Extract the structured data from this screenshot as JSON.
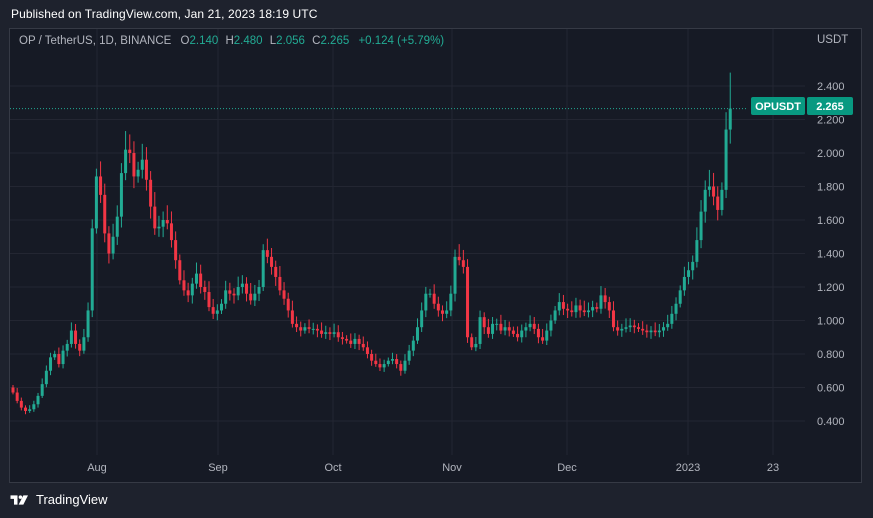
{
  "header": {
    "published": "Published on TradingView.com, Jan 21, 2023 18:19 UTC"
  },
  "legend": {
    "symbol": "OP / TetherUS, 1D, BINANCE",
    "o_label": "O",
    "o": "2.140",
    "h_label": "H",
    "h": "2.480",
    "l_label": "L",
    "l": "2.056",
    "c_label": "C",
    "c": "2.265",
    "change": "+0.124 (+5.79%)"
  },
  "price_axis": {
    "unit": "USDT",
    "ticks": [
      "2.400",
      "2.200",
      "2.000",
      "1.800",
      "1.600",
      "1.400",
      "1.200",
      "1.000",
      "0.800",
      "0.600",
      "0.400"
    ]
  },
  "time_axis": {
    "ticks": [
      "Aug",
      "Sep",
      "Oct",
      "Nov",
      "Dec",
      "2023",
      "23"
    ]
  },
  "last_price": {
    "symbol": "OPUSDT",
    "value": "2.265"
  },
  "footer": {
    "brand": "TradingView"
  },
  "colors": {
    "up": "#22ab94",
    "down": "#f23645",
    "background": "#161a25",
    "grid": "#232632",
    "label_bg": "#089981"
  },
  "chart_data": {
    "type": "candlestick",
    "symbol": "OP / TetherUS",
    "interval": "1D",
    "exchange": "BINANCE",
    "x_ticks": [
      "Aug",
      "Sep",
      "Oct",
      "Nov",
      "Dec",
      "2023",
      "23"
    ],
    "y_unit": "USDT",
    "ylim": [
      0.2,
      2.62
    ],
    "grid": true,
    "closes": [
      0.57,
      0.52,
      0.48,
      0.46,
      0.47,
      0.5,
      0.55,
      0.62,
      0.7,
      0.78,
      0.8,
      0.74,
      0.82,
      0.86,
      0.94,
      0.86,
      0.82,
      0.9,
      1.06,
      1.55,
      1.86,
      1.75,
      1.52,
      1.4,
      1.5,
      1.62,
      1.88,
      2.02,
      2.0,
      1.86,
      1.9,
      1.96,
      1.84,
      1.68,
      1.55,
      1.56,
      1.6,
      1.58,
      1.48,
      1.36,
      1.24,
      1.18,
      1.15,
      1.22,
      1.28,
      1.2,
      1.17,
      1.08,
      1.04,
      1.06,
      1.1,
      1.18,
      1.16,
      1.15,
      1.2,
      1.22,
      1.16,
      1.12,
      1.16,
      1.2,
      1.42,
      1.38,
      1.32,
      1.26,
      1.18,
      1.13,
      1.06,
      0.98,
      0.96,
      0.94,
      0.96,
      0.95,
      0.95,
      0.94,
      0.92,
      0.93,
      0.92,
      0.93,
      0.9,
      0.89,
      0.88,
      0.86,
      0.89,
      0.86,
      0.84,
      0.8,
      0.76,
      0.74,
      0.72,
      0.74,
      0.76,
      0.77,
      0.74,
      0.7,
      0.76,
      0.82,
      0.88,
      0.96,
      1.06,
      1.16,
      1.16,
      1.1,
      1.06,
      1.04,
      1.06,
      1.16,
      1.38,
      1.36,
      1.32,
      0.9,
      0.84,
      0.86,
      1.02,
      0.96,
      0.92,
      0.98,
      0.98,
      0.94,
      0.96,
      0.94,
      0.92,
      0.9,
      0.94,
      0.96,
      0.98,
      0.95,
      0.9,
      0.88,
      0.94,
      1.0,
      1.06,
      1.11,
      1.07,
      1.06,
      1.05,
      1.09,
      1.06,
      1.05,
      1.06,
      1.08,
      1.07,
      1.15,
      1.11,
      1.06,
      0.96,
      0.94,
      0.95,
      0.96,
      0.97,
      0.96,
      0.95,
      0.94,
      0.93,
      0.94,
      0.93,
      0.94,
      0.96,
      0.98,
      1.04,
      1.1,
      1.18,
      1.26,
      1.3,
      1.35,
      1.48,
      1.65,
      1.78,
      1.8,
      1.74,
      1.66,
      1.78,
      2.14,
      2.265
    ]
  }
}
